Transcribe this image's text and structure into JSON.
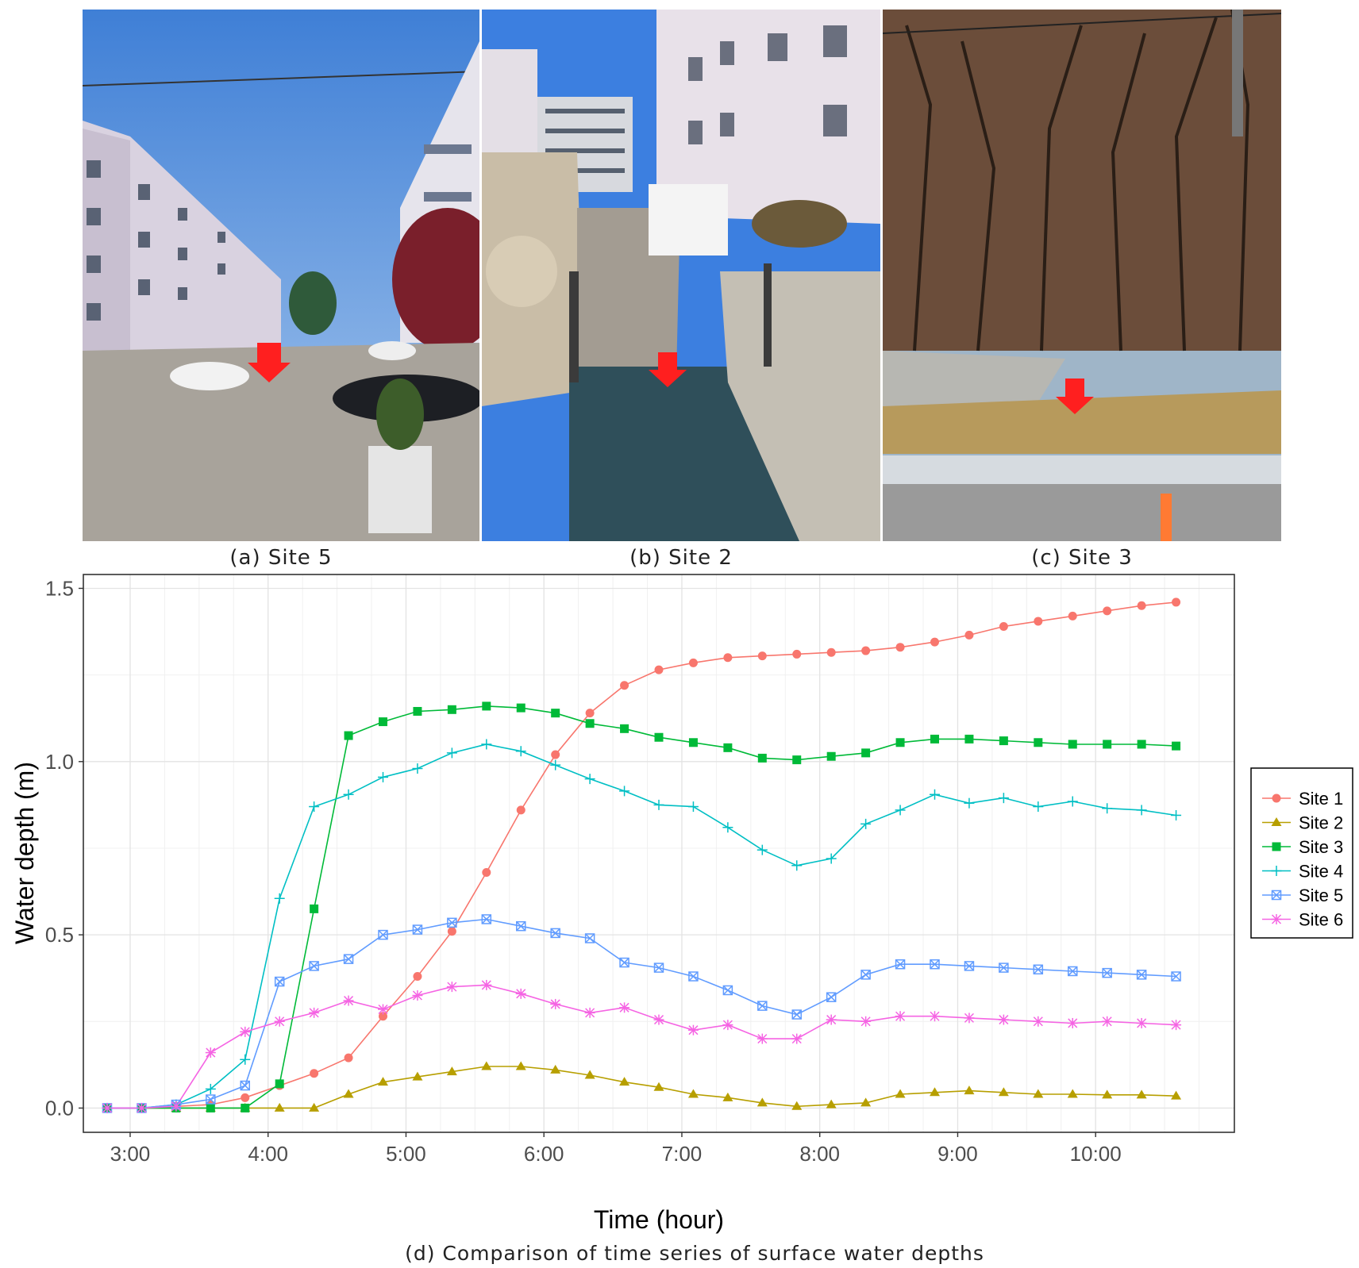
{
  "panels": [
    {
      "caption": "(a) Site 5"
    },
    {
      "caption": "(b) Site 2"
    },
    {
      "caption": "(c) Site 3"
    }
  ],
  "chart_caption": "(d) Comparison of time series of surface water depths",
  "chart_data": {
    "type": "line",
    "xlabel": "Time (hour)",
    "ylabel": "Water depth (m)",
    "x_ticks": [
      "3:00",
      "4:00",
      "5:00",
      "6:00",
      "7:00",
      "8:00",
      "9:00",
      "10:00"
    ],
    "xlim": [
      "2:50",
      "10:50"
    ],
    "y_ticks": [
      "0.0",
      "0.5",
      "1.0",
      "1.5"
    ],
    "ylim": [
      -0.07,
      1.54
    ],
    "grid": true,
    "legend_position": "right",
    "x": [
      "2:50",
      "3:05",
      "3:20",
      "3:35",
      "3:50",
      "4:05",
      "4:20",
      "4:35",
      "4:50",
      "5:05",
      "5:20",
      "5:35",
      "5:50",
      "6:05",
      "6:20",
      "6:35",
      "6:50",
      "7:05",
      "7:20",
      "7:35",
      "7:50",
      "8:05",
      "8:20",
      "8:35",
      "8:50",
      "9:05",
      "9:20",
      "9:35",
      "9:50",
      "10:05",
      "10:20",
      "10:35"
    ],
    "series": [
      {
        "name": "Site 1",
        "color": "#F8766D",
        "marker": "circle",
        "values": [
          0,
          0,
          0.005,
          0.01,
          0.03,
          0.065,
          0.1,
          0.145,
          0.265,
          0.38,
          0.51,
          0.68,
          0.86,
          1.02,
          1.14,
          1.22,
          1.265,
          1.285,
          1.3,
          1.305,
          1.31,
          1.315,
          1.32,
          1.33,
          1.345,
          1.365,
          1.39,
          1.405,
          1.42,
          1.435,
          1.45,
          1.46
        ]
      },
      {
        "name": "Site 2",
        "color": "#B79F00",
        "marker": "triangle",
        "values": [
          0,
          0,
          0,
          0,
          0,
          0,
          0,
          0.04,
          0.075,
          0.09,
          0.105,
          0.12,
          0.12,
          0.11,
          0.095,
          0.075,
          0.06,
          0.04,
          0.03,
          0.015,
          0.005,
          0.01,
          0.015,
          0.04,
          0.045,
          0.05,
          0.045,
          0.04,
          0.04,
          0.038,
          0.038,
          0.035
        ]
      },
      {
        "name": "Site 3",
        "color": "#00BA38",
        "marker": "square",
        "values": [
          0,
          0,
          0,
          0,
          0,
          0.07,
          0.575,
          1.075,
          1.115,
          1.145,
          1.15,
          1.16,
          1.155,
          1.14,
          1.11,
          1.095,
          1.07,
          1.055,
          1.04,
          1.01,
          1.005,
          1.015,
          1.025,
          1.055,
          1.065,
          1.065,
          1.06,
          1.055,
          1.05,
          1.05,
          1.05,
          1.045
        ]
      },
      {
        "name": "Site 4",
        "color": "#00BFC4",
        "marker": "plus",
        "values": [
          0,
          0,
          0.01,
          0.055,
          0.14,
          0.605,
          0.87,
          0.905,
          0.955,
          0.98,
          1.025,
          1.05,
          1.03,
          0.99,
          0.95,
          0.915,
          0.875,
          0.87,
          0.81,
          0.745,
          0.7,
          0.72,
          0.82,
          0.86,
          0.905,
          0.88,
          0.895,
          0.87,
          0.885,
          0.865,
          0.86,
          0.845
        ]
      },
      {
        "name": "Site 5",
        "color": "#619CFF",
        "marker": "boxcross",
        "values": [
          0,
          0,
          0.01,
          0.025,
          0.065,
          0.365,
          0.41,
          0.43,
          0.5,
          0.515,
          0.535,
          0.545,
          0.525,
          0.505,
          0.49,
          0.42,
          0.405,
          0.38,
          0.34,
          0.295,
          0.27,
          0.32,
          0.385,
          0.415,
          0.415,
          0.41,
          0.405,
          0.4,
          0.395,
          0.39,
          0.385,
          0.38
        ]
      },
      {
        "name": "Site 6",
        "color": "#F564E3",
        "marker": "asterisk",
        "values": [
          0,
          0,
          0.005,
          0.16,
          0.22,
          0.25,
          0.275,
          0.31,
          0.285,
          0.325,
          0.35,
          0.355,
          0.33,
          0.3,
          0.275,
          0.29,
          0.255,
          0.225,
          0.24,
          0.2,
          0.2,
          0.255,
          0.25,
          0.265,
          0.265,
          0.26,
          0.255,
          0.25,
          0.245,
          0.25,
          0.245,
          0.24
        ]
      }
    ]
  }
}
